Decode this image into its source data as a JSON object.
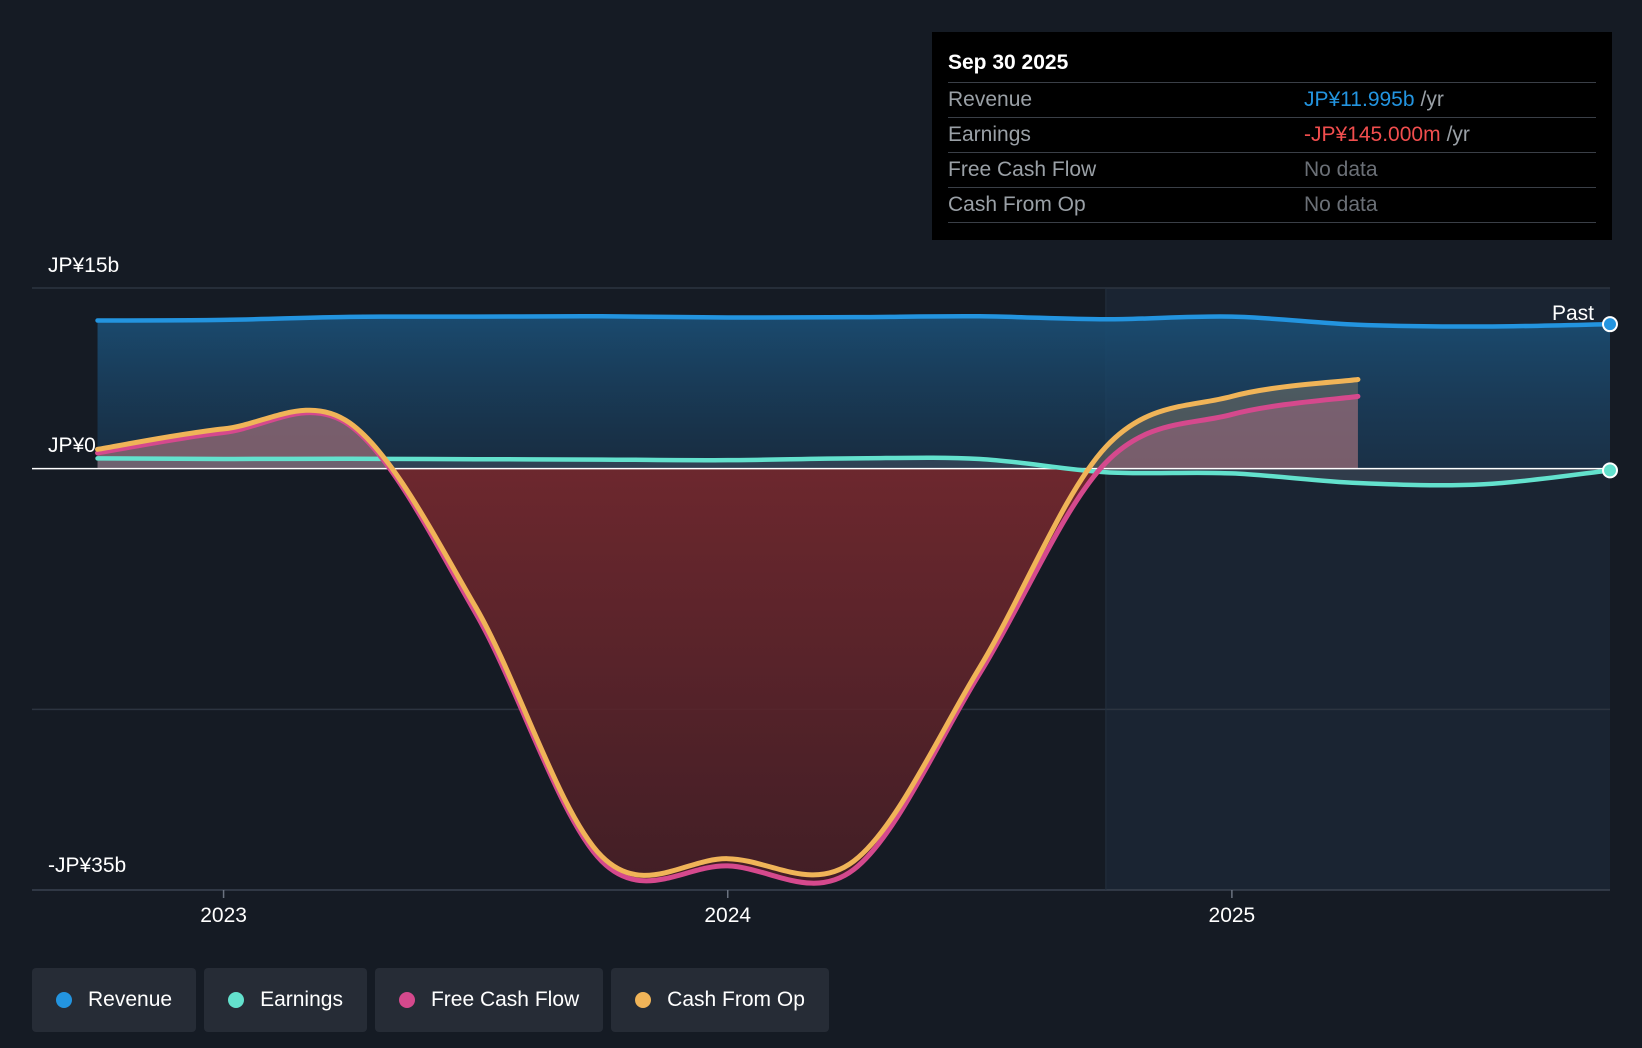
{
  "chart_data": {
    "type": "area",
    "title": "",
    "ylabels": {
      "top": "JP¥15b",
      "zero": "JP¥0",
      "bottom": "-JP¥35b"
    },
    "ylim": [
      -35,
      15
    ],
    "units": "JP¥ billions",
    "x_ticks": [
      {
        "label": "2023",
        "year": 2023.0
      },
      {
        "label": "2024",
        "year": 2024.0
      },
      {
        "label": "2025",
        "year": 2025.0
      }
    ],
    "x_range": [
      2022.62,
      2025.75
    ],
    "past_label": "Past",
    "past_start": 2024.75,
    "series": [
      {
        "name": "Revenue",
        "color": "#2394df",
        "points": [
          [
            2022.75,
            12.3
          ],
          [
            2023.0,
            12.35
          ],
          [
            2023.25,
            12.6
          ],
          [
            2023.5,
            12.62
          ],
          [
            2023.75,
            12.65
          ],
          [
            2024.0,
            12.55
          ],
          [
            2024.25,
            12.58
          ],
          [
            2024.5,
            12.65
          ],
          [
            2024.75,
            12.4
          ],
          [
            2025.0,
            12.62
          ],
          [
            2025.25,
            11.95
          ],
          [
            2025.5,
            11.8
          ],
          [
            2025.75,
            11.995
          ]
        ]
      },
      {
        "name": "Earnings",
        "color": "#63e1cd",
        "points": [
          [
            2022.75,
            0.85
          ],
          [
            2023.0,
            0.8
          ],
          [
            2023.25,
            0.82
          ],
          [
            2023.5,
            0.78
          ],
          [
            2023.75,
            0.75
          ],
          [
            2024.0,
            0.7
          ],
          [
            2024.25,
            0.85
          ],
          [
            2024.5,
            0.8
          ],
          [
            2024.75,
            -0.3
          ],
          [
            2025.0,
            -0.4
          ],
          [
            2025.25,
            -1.2
          ],
          [
            2025.5,
            -1.3
          ],
          [
            2025.75,
            -0.145
          ]
        ]
      },
      {
        "name": "Free Cash Flow",
        "color": "#d5498d",
        "points": [
          [
            2022.75,
            1.3
          ],
          [
            2023.0,
            3.0
          ],
          [
            2023.25,
            3.6
          ],
          [
            2023.5,
            -12.0
          ],
          [
            2023.75,
            -32.6
          ],
          [
            2024.0,
            -33.0
          ],
          [
            2024.25,
            -33.3
          ],
          [
            2024.5,
            -17.0
          ],
          [
            2024.75,
            0.5
          ],
          [
            2025.0,
            4.5
          ],
          [
            2025.25,
            6.0
          ]
        ]
      },
      {
        "name": "Cash From Op",
        "color": "#f0b458",
        "points": [
          [
            2022.75,
            1.6
          ],
          [
            2023.0,
            3.3
          ],
          [
            2023.25,
            3.8
          ],
          [
            2023.5,
            -11.5
          ],
          [
            2023.75,
            -32.2
          ],
          [
            2024.0,
            -32.4
          ],
          [
            2024.25,
            -32.6
          ],
          [
            2024.5,
            -16.5
          ],
          [
            2024.75,
            1.8
          ],
          [
            2025.0,
            6.0
          ],
          [
            2025.25,
            7.4
          ]
        ]
      }
    ]
  },
  "tooltip": {
    "date": "Sep 30 2025",
    "rows": [
      {
        "label": "Revenue",
        "value": "JP¥11.995b",
        "unit": "/yr",
        "color": "#2394df"
      },
      {
        "label": "Earnings",
        "value": "-JP¥145.000m",
        "unit": "/yr",
        "color": "#f14e4e"
      },
      {
        "label": "Free Cash Flow",
        "value": "No data",
        "unit": "",
        "color": "#6b7077"
      },
      {
        "label": "Cash From Op",
        "value": "No data",
        "unit": "",
        "color": "#6b7077"
      }
    ]
  },
  "legend": [
    {
      "label": "Revenue",
      "color": "#2394df"
    },
    {
      "label": "Earnings",
      "color": "#63e1cd"
    },
    {
      "label": "Free Cash Flow",
      "color": "#d5498d"
    },
    {
      "label": "Cash From Op",
      "color": "#f0b458"
    }
  ]
}
